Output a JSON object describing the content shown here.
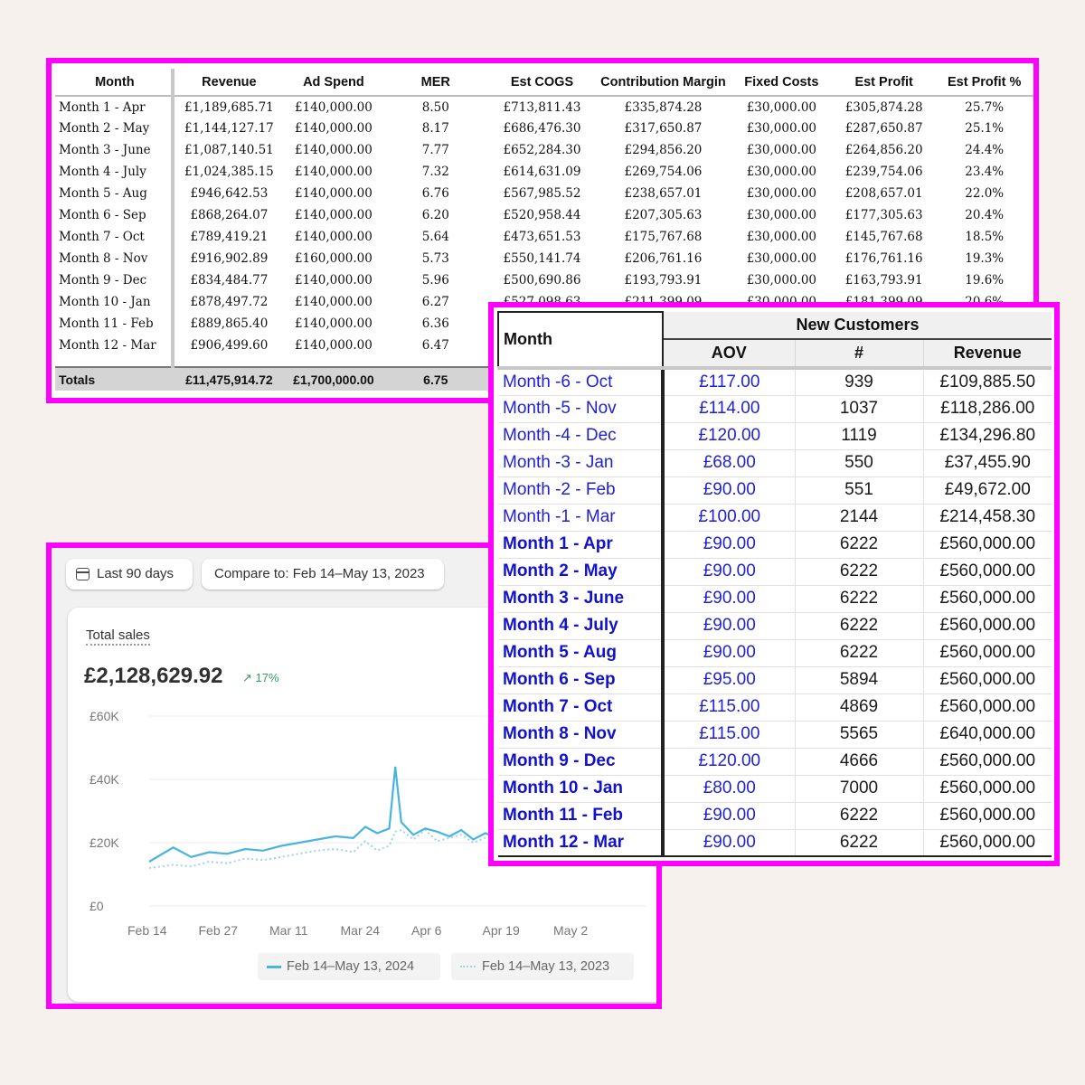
{
  "pnl": {
    "headers": [
      "Month",
      "Revenue",
      "Ad Spend",
      "MER",
      "Est COGS",
      "Contribution Margin",
      "Fixed Costs",
      "Est Profit",
      "Est Profit %"
    ],
    "rows": [
      [
        "Month 1 - Apr",
        "£1,189,685.71",
        "£140,000.00",
        "8.50",
        "£713,811.43",
        "£335,874.28",
        "£30,000.00",
        "£305,874.28",
        "25.7%"
      ],
      [
        "Month 2 - May",
        "£1,144,127.17",
        "£140,000.00",
        "8.17",
        "£686,476.30",
        "£317,650.87",
        "£30,000.00",
        "£287,650.87",
        "25.1%"
      ],
      [
        "Month 3 - June",
        "£1,087,140.51",
        "£140,000.00",
        "7.77",
        "£652,284.30",
        "£294,856.20",
        "£30,000.00",
        "£264,856.20",
        "24.4%"
      ],
      [
        "Month 4 - July",
        "£1,024,385.15",
        "£140,000.00",
        "7.32",
        "£614,631.09",
        "£269,754.06",
        "£30,000.00",
        "£239,754.06",
        "23.4%"
      ],
      [
        "Month 5 - Aug",
        "£946,642.53",
        "£140,000.00",
        "6.76",
        "£567,985.52",
        "£238,657.01",
        "£30,000.00",
        "£208,657.01",
        "22.0%"
      ],
      [
        "Month 6 - Sep",
        "£868,264.07",
        "£140,000.00",
        "6.20",
        "£520,958.44",
        "£207,305.63",
        "£30,000.00",
        "£177,305.63",
        "20.4%"
      ],
      [
        "Month 7 - Oct",
        "£789,419.21",
        "£140,000.00",
        "5.64",
        "£473,651.53",
        "£175,767.68",
        "£30,000.00",
        "£145,767.68",
        "18.5%"
      ],
      [
        "Month 8 - Nov",
        "£916,902.89",
        "£160,000.00",
        "5.73",
        "£550,141.74",
        "£206,761.16",
        "£30,000.00",
        "£176,761.16",
        "19.3%"
      ],
      [
        "Month 9 - Dec",
        "£834,484.77",
        "£140,000.00",
        "5.96",
        "£500,690.86",
        "£193,793.91",
        "£30,000.00",
        "£163,793.91",
        "19.6%"
      ],
      [
        "Month 10 - Jan",
        "£878,497.72",
        "£140,000.00",
        "6.27",
        "£527,098.63",
        "£211,399.09",
        "£30,000.00",
        "£181,399.09",
        "20.6%"
      ],
      [
        "Month 11 - Feb",
        "£889,865.40",
        "£140,000.00",
        "6.36",
        "",
        "",
        "",
        "",
        ""
      ],
      [
        "Month 12 - Mar",
        "£906,499.60",
        "£140,000.00",
        "6.47",
        "",
        "",
        "",
        "",
        ""
      ]
    ],
    "totals": [
      "Totals",
      "£11,475,914.72",
      "£1,700,000.00",
      "6.75",
      "",
      "",
      "",
      "",
      ""
    ]
  },
  "sales": {
    "date_range_label": "Last 90 days",
    "compare_label": "Compare to: Feb 14–May 13, 2023",
    "total_label": "Total sales",
    "total_value": "£2,128,629.92",
    "change": "↗ 17%",
    "legend_current": "Feb 14–May 13, 2024",
    "legend_previous": "Feb 14–May 13, 2023",
    "color_current": "#4ab3df",
    "color_previous": "#9fd3ea",
    "icons": {
      "date": "calendar-icon",
      "change": "arrow-up-right-icon"
    }
  },
  "chart_data": {
    "type": "line",
    "y_ticks": [
      "£60K",
      "£40K",
      "£20K",
      "£0"
    ],
    "x_ticks": [
      "Feb 14",
      "Feb 27",
      "Mar 11",
      "Mar 24",
      "Apr 6",
      "Apr 19",
      "May 2"
    ],
    "ylim": [
      0,
      60000
    ],
    "x": [
      0,
      4,
      7,
      10,
      13,
      16,
      19,
      22,
      25,
      28,
      31,
      34,
      36,
      38,
      40,
      41,
      42,
      44,
      46,
      48,
      50,
      52,
      54,
      56,
      58
    ],
    "series": [
      {
        "values": [
          14000,
          18500,
          15500,
          17000,
          16500,
          18000,
          17500,
          19000,
          20000,
          21000,
          22000,
          21500,
          25000,
          23000,
          24500,
          44000,
          26500,
          22500,
          24500,
          23500,
          22000,
          24000,
          21000,
          23000,
          21500
        ]
      },
      {
        "values": [
          12000,
          13000,
          12500,
          14000,
          13500,
          15000,
          14500,
          15500,
          16500,
          17500,
          18000,
          17000,
          20500,
          17500,
          19000,
          23500,
          24000,
          21000,
          24000,
          20500,
          21500,
          22500,
          20000,
          21500,
          20500
        ]
      }
    ]
  },
  "customers": {
    "month_header": "Month",
    "group_header": "New Customers",
    "sub_headers": [
      "AOV",
      "#",
      "Revenue"
    ],
    "rows": [
      {
        "month": "Month -6 - Oct",
        "aov": "£117.00",
        "count": "939",
        "revenue": "£109,885.50",
        "bold": false
      },
      {
        "month": "Month -5 - Nov",
        "aov": "£114.00",
        "count": "1037",
        "revenue": "£118,286.00",
        "bold": false
      },
      {
        "month": "Month -4 - Dec",
        "aov": "£120.00",
        "count": "1119",
        "revenue": "£134,296.80",
        "bold": false
      },
      {
        "month": "Month -3 - Jan",
        "aov": "£68.00",
        "count": "550",
        "revenue": "£37,455.90",
        "bold": false
      },
      {
        "month": "Month -2 - Feb",
        "aov": "£90.00",
        "count": "551",
        "revenue": "£49,672.00",
        "bold": false
      },
      {
        "month": "Month -1 - Mar",
        "aov": "£100.00",
        "count": "2144",
        "revenue": "£214,458.30",
        "bold": false
      },
      {
        "month": "Month 1 - Apr",
        "aov": "£90.00",
        "count": "6222",
        "revenue": "£560,000.00",
        "bold": true
      },
      {
        "month": "Month 2 - May",
        "aov": "£90.00",
        "count": "6222",
        "revenue": "£560,000.00",
        "bold": true
      },
      {
        "month": "Month 3 - June",
        "aov": "£90.00",
        "count": "6222",
        "revenue": "£560,000.00",
        "bold": true
      },
      {
        "month": "Month 4 - July",
        "aov": "£90.00",
        "count": "6222",
        "revenue": "£560,000.00",
        "bold": true
      },
      {
        "month": "Month 5 - Aug",
        "aov": "£90.00",
        "count": "6222",
        "revenue": "£560,000.00",
        "bold": true
      },
      {
        "month": "Month 6 - Sep",
        "aov": "£95.00",
        "count": "5894",
        "revenue": "£560,000.00",
        "bold": true
      },
      {
        "month": "Month 7 - Oct",
        "aov": "£115.00",
        "count": "4869",
        "revenue": "£560,000.00",
        "bold": true
      },
      {
        "month": "Month 8 - Nov",
        "aov": "£115.00",
        "count": "5565",
        "revenue": "£640,000.00",
        "bold": true
      },
      {
        "month": "Month 9 - Dec",
        "aov": "£120.00",
        "count": "4666",
        "revenue": "£560,000.00",
        "bold": true
      },
      {
        "month": "Month 10 - Jan",
        "aov": "£80.00",
        "count": "7000",
        "revenue": "£560,000.00",
        "bold": true
      },
      {
        "month": "Month 11 - Feb",
        "aov": "£90.00",
        "count": "6222",
        "revenue": "£560,000.00",
        "bold": true
      },
      {
        "month": "Month 12 - Mar",
        "aov": "£90.00",
        "count": "6222",
        "revenue": "£560,000.00",
        "bold": true
      }
    ]
  },
  "colors": {
    "highlight_border": "#ff00ff",
    "link_blue": "#1f1fd6",
    "background": "#f6f1ec"
  }
}
